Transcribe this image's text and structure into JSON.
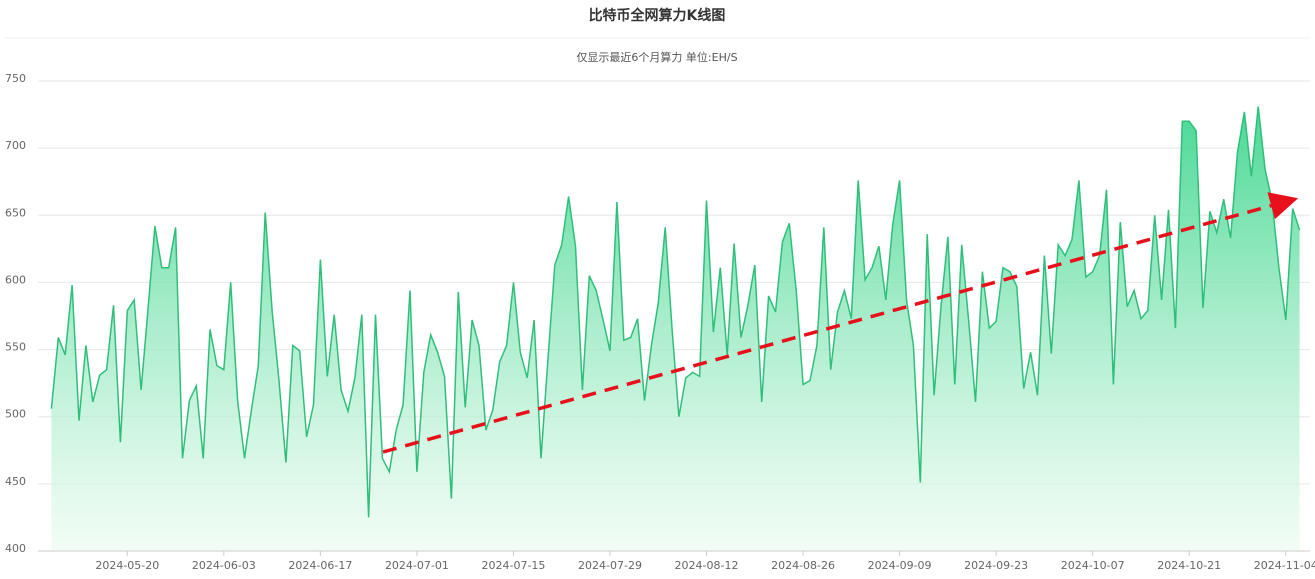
{
  "chart_data": {
    "type": "area",
    "title": "比特币全网算力K线图",
    "subtitle": "仅显示最近6个月算力 单位:EH/S",
    "color": "#2fbf7b",
    "ylim": [
      400,
      750
    ],
    "yticks": [
      400,
      450,
      500,
      550,
      600,
      650,
      700,
      750
    ],
    "grid": true,
    "categories": [
      null,
      null,
      null,
      null,
      null,
      null,
      null,
      null,
      null,
      null,
      null,
      "2024-05-20",
      null,
      null,
      null,
      null,
      null,
      null,
      null,
      null,
      null,
      null,
      null,
      null,
      null,
      "2024-06-03",
      null,
      null,
      null,
      null,
      null,
      null,
      null,
      null,
      null,
      null,
      null,
      null,
      null,
      "2024-06-17",
      null,
      null,
      null,
      null,
      null,
      null,
      null,
      null,
      null,
      null,
      null,
      null,
      null,
      "2024-07-01",
      null,
      null,
      null,
      null,
      null,
      null,
      null,
      null,
      null,
      null,
      null,
      null,
      null,
      "2024-07-15",
      null,
      null,
      null,
      null,
      null,
      null,
      null,
      null,
      null,
      null,
      null,
      null,
      null,
      "2024-07-29",
      null,
      null,
      null,
      null,
      null,
      null,
      null,
      null,
      null,
      null,
      null,
      null,
      null,
      "2024-08-12",
      null,
      null,
      null,
      null,
      null,
      null,
      null,
      null,
      null,
      null,
      null,
      null,
      null,
      "2024-08-26",
      null,
      null,
      null,
      null,
      null,
      null,
      null,
      null,
      null,
      null,
      null,
      null,
      null,
      "2024-09-09",
      null,
      null,
      null,
      null,
      null,
      null,
      null,
      null,
      null,
      null,
      null,
      null,
      null,
      "2024-09-23",
      null,
      null,
      null,
      null,
      null,
      null,
      null,
      null,
      null,
      null,
      null,
      null,
      null,
      "2024-10-07",
      null,
      null,
      null,
      null,
      null,
      null,
      null,
      null,
      null,
      null,
      null,
      null,
      null,
      "2024-10-21",
      null,
      null,
      null,
      null,
      null,
      null,
      null,
      null,
      null,
      null,
      null,
      null,
      null,
      "2024-11-04",
      null,
      null
    ],
    "values": [
      506,
      559,
      546,
      598,
      497,
      553,
      511,
      531,
      535,
      583,
      481,
      579,
      587,
      520,
      580,
      642,
      611,
      611,
      641,
      469,
      512,
      523,
      469,
      565,
      538,
      535,
      600,
      512,
      469,
      505,
      538,
      652,
      579,
      527,
      466,
      553,
      549,
      485,
      509,
      617,
      530,
      576,
      520,
      504,
      529,
      576,
      425,
      576,
      469,
      459,
      490,
      509,
      594,
      459,
      533,
      561,
      548,
      530,
      439,
      593,
      507,
      572,
      553,
      490,
      505,
      541,
      553,
      600,
      548,
      529,
      572,
      469,
      542,
      613,
      628,
      664,
      627,
      520,
      605,
      594,
      572,
      549,
      660,
      557,
      559,
      573,
      512,
      553,
      585,
      641,
      565,
      500,
      529,
      533,
      530,
      661,
      563,
      611,
      546,
      629,
      559,
      583,
      613,
      511,
      590,
      578,
      630,
      644,
      594,
      524,
      527,
      553,
      641,
      535,
      578,
      594,
      573,
      676,
      602,
      611,
      627,
      587,
      643,
      676,
      587,
      553,
      451,
      636,
      516,
      582,
      634,
      524,
      628,
      572,
      511,
      608,
      566,
      571,
      611,
      608,
      597,
      521,
      548,
      516,
      620,
      547,
      628,
      620,
      632,
      676,
      604,
      608,
      620,
      669,
      524,
      645,
      582,
      594,
      573,
      579,
      650,
      587,
      654,
      566,
      720,
      720,
      713,
      581,
      653,
      637,
      662,
      633,
      697,
      727,
      679,
      731,
      684,
      661,
      611,
      572,
      655,
      639
    ]
  }
}
